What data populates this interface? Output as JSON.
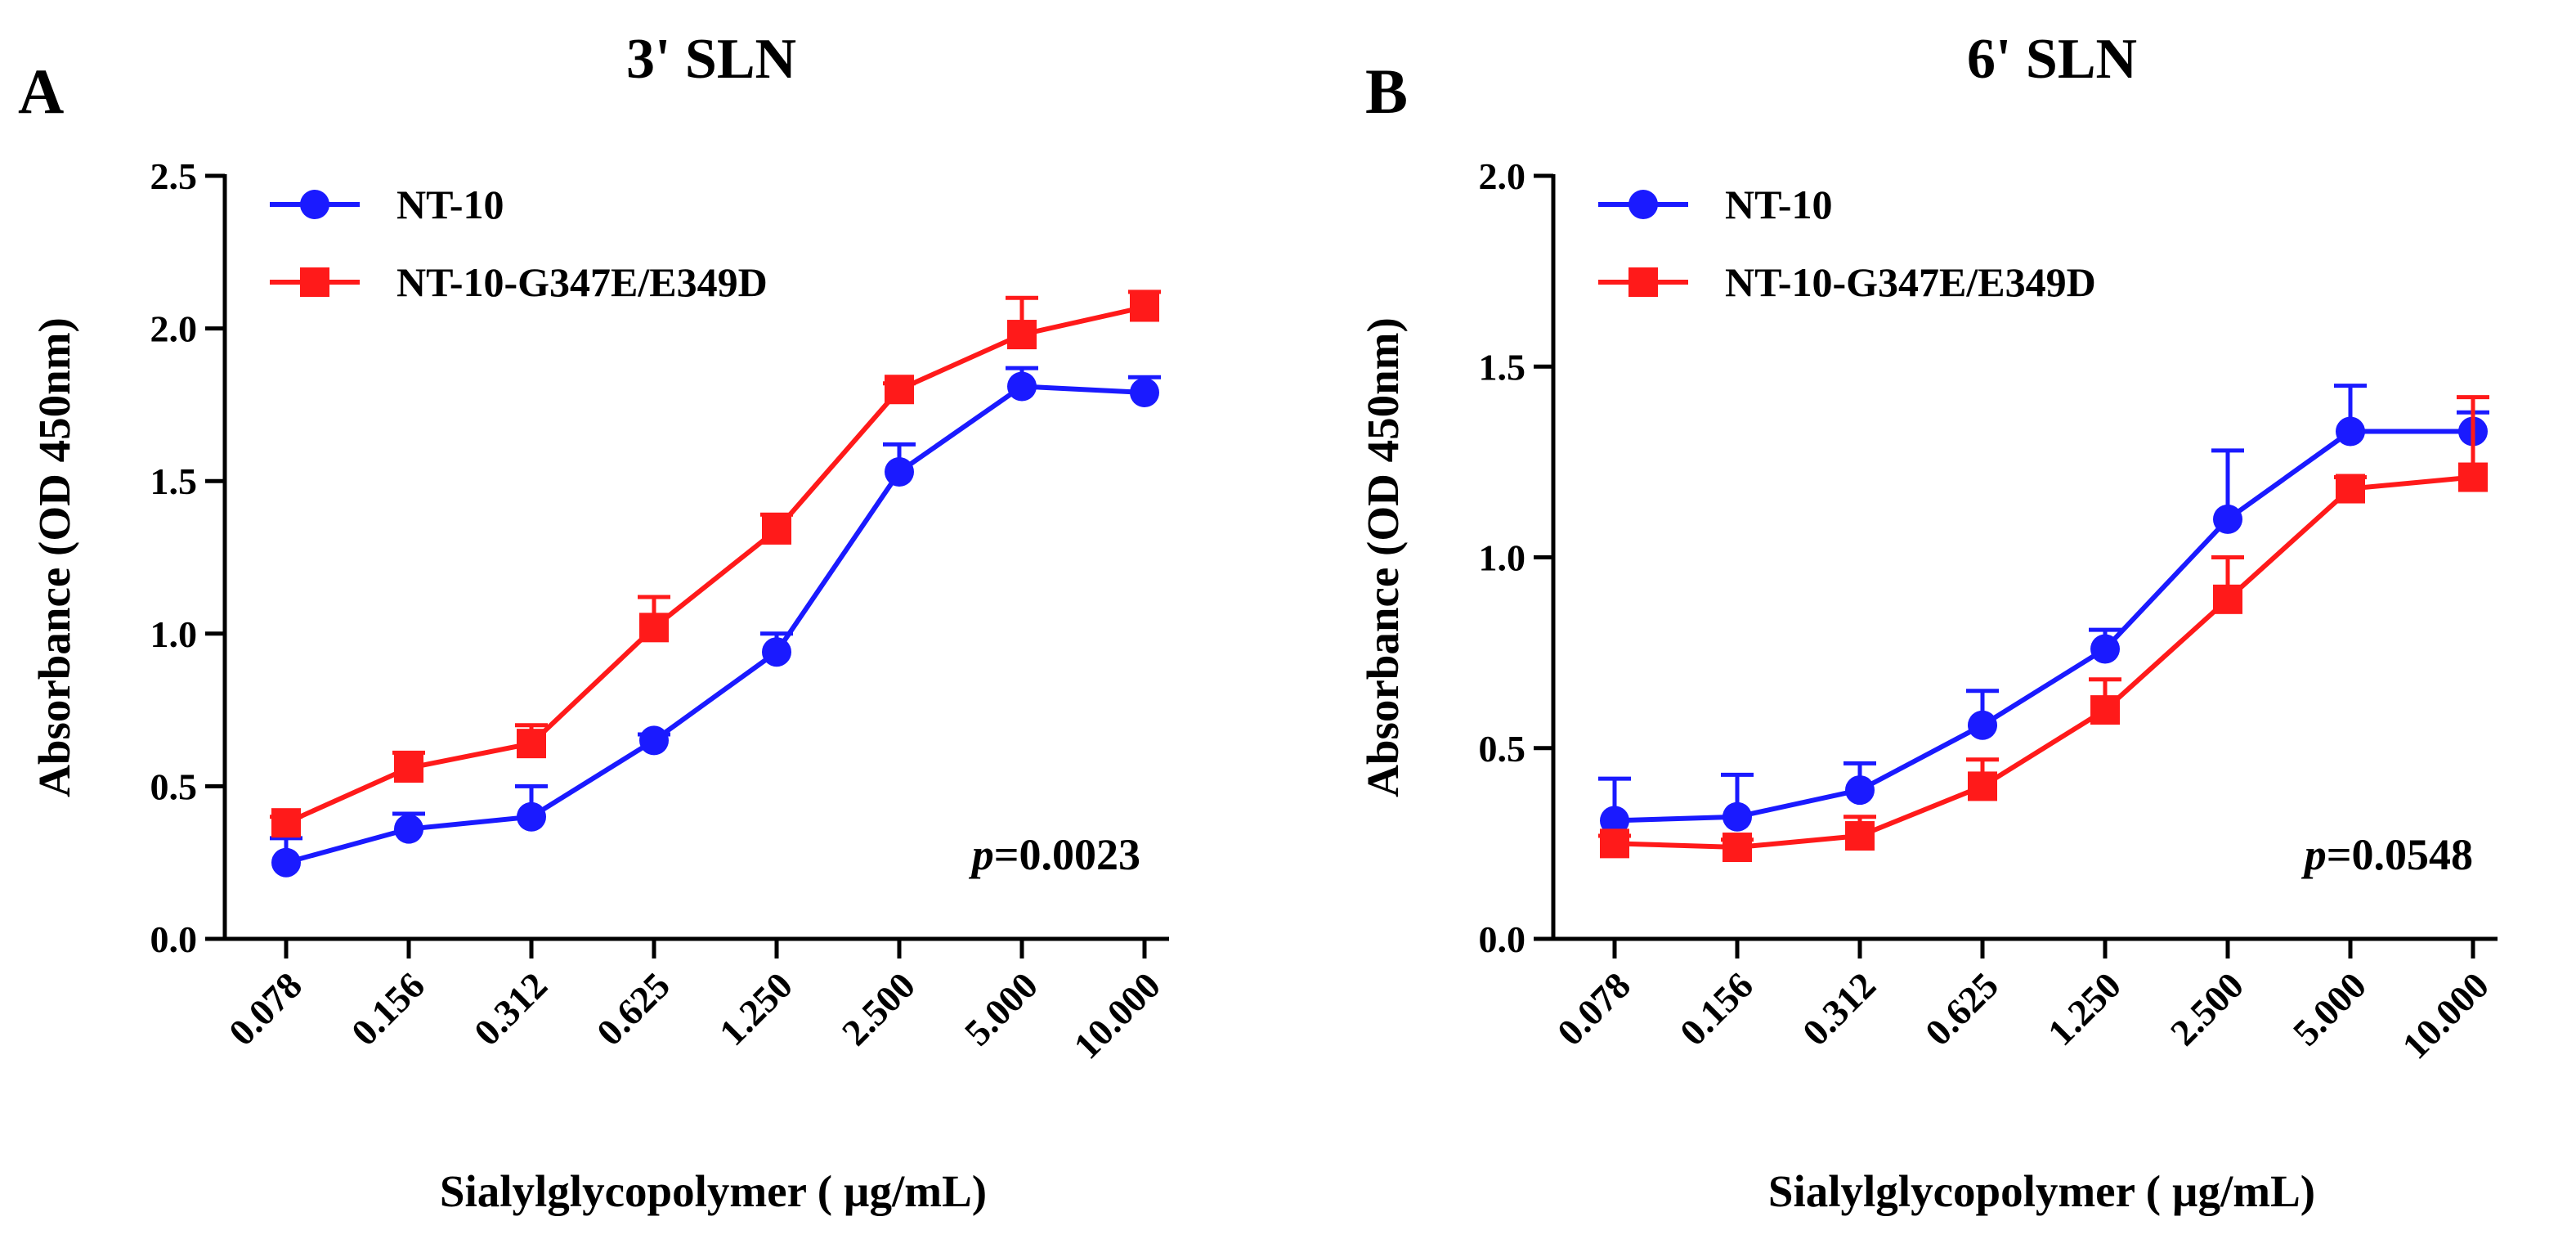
{
  "chart_data": [
    {
      "panel_label": "A",
      "type": "line",
      "title": "3' SLN",
      "xlabel": "Sialylglycopolymer ( µg/mL)",
      "ylabel": "Absorbance (OD 450nm)",
      "categories": [
        "0.078",
        "0.156",
        "0.312",
        "0.625",
        "1.250",
        "2.500",
        "5.000",
        "10.000"
      ],
      "ylim": [
        0,
        2.5
      ],
      "yticks": [
        "0.0",
        "0.5",
        "1.0",
        "1.5",
        "2.0",
        "2.5"
      ],
      "ytick_values": [
        0,
        0.5,
        1.0,
        1.5,
        2.0,
        2.5
      ],
      "annotation": {
        "italic": "p",
        "text": "=0.0023"
      },
      "legend_position": "top-left",
      "series": [
        {
          "name": "NT-10",
          "color": "#1a1aff",
          "marker": "circle",
          "values": [
            0.25,
            0.36,
            0.4,
            0.65,
            0.94,
            1.53,
            1.81,
            1.79
          ],
          "errors": [
            0.08,
            0.05,
            0.1,
            0.02,
            0.06,
            0.09,
            0.06,
            0.05
          ]
        },
        {
          "name": "NT-10-G347E/E349D",
          "color": "#ff1a1a",
          "marker": "square",
          "values": [
            0.38,
            0.56,
            0.64,
            1.02,
            1.34,
            1.8,
            1.98,
            2.07
          ],
          "errors": [
            0.02,
            0.05,
            0.06,
            0.1,
            0.05,
            0.02,
            0.12,
            0.05
          ]
        }
      ]
    },
    {
      "panel_label": "B",
      "type": "line",
      "title": "6' SLN",
      "xlabel": "Sialylglycopolymer ( µg/mL)",
      "ylabel": "Absorbance (OD 450nm)",
      "categories": [
        "0.078",
        "0.156",
        "0.312",
        "0.625",
        "1.250",
        "2.500",
        "5.000",
        "10.000"
      ],
      "ylim": [
        0,
        2.0
      ],
      "yticks": [
        "0.0",
        "0.5",
        "1.0",
        "1.5",
        "2.0"
      ],
      "ytick_values": [
        0,
        0.5,
        1.0,
        1.5,
        2.0
      ],
      "annotation": {
        "italic": "p",
        "text": "=0.0548"
      },
      "legend_position": "top-left",
      "series": [
        {
          "name": "NT-10",
          "color": "#1a1aff",
          "marker": "circle",
          "values": [
            0.31,
            0.32,
            0.39,
            0.56,
            0.76,
            1.1,
            1.33,
            1.33
          ],
          "errors": [
            0.11,
            0.11,
            0.07,
            0.09,
            0.05,
            0.18,
            0.12,
            0.05
          ]
        },
        {
          "name": "NT-10-G347E/E349D",
          "color": "#ff1a1a",
          "marker": "square",
          "values": [
            0.25,
            0.24,
            0.27,
            0.4,
            0.6,
            0.89,
            1.18,
            1.21
          ],
          "errors": [
            0.02,
            0.02,
            0.05,
            0.07,
            0.08,
            0.11,
            0.03,
            0.21
          ]
        }
      ]
    }
  ]
}
